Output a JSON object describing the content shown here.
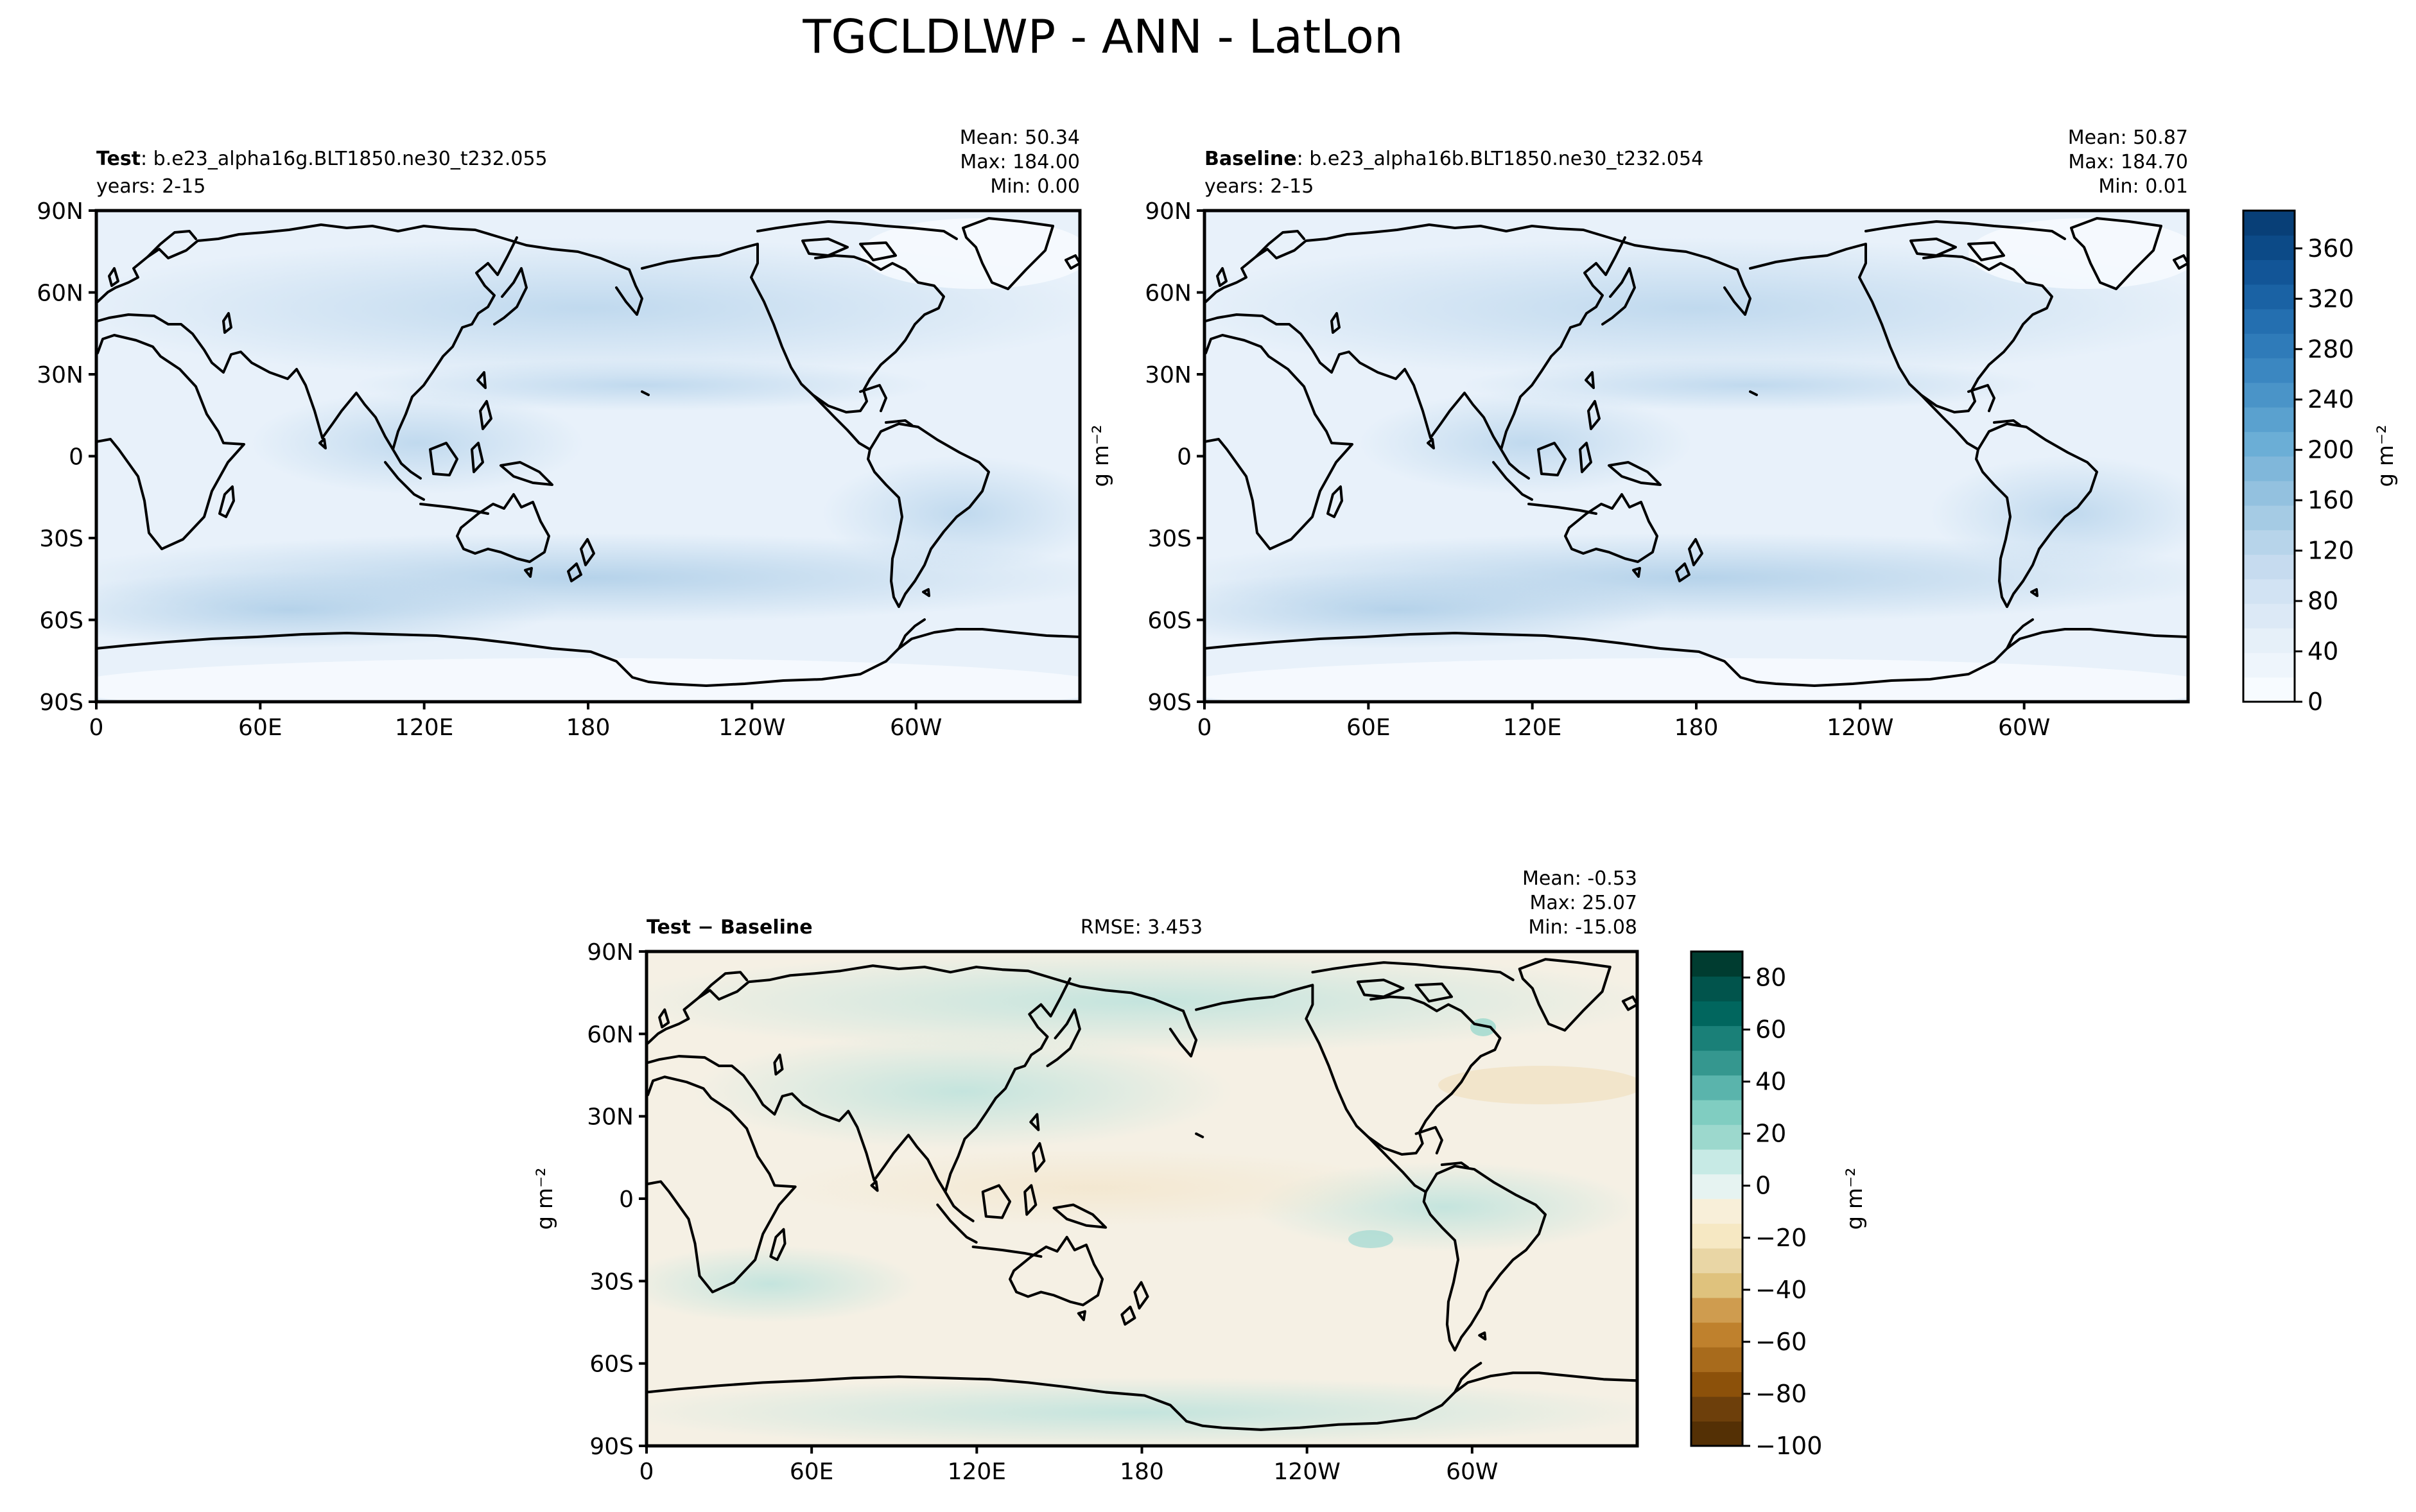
{
  "figure": {
    "title": "TGCLDLWP - ANN - LatLon"
  },
  "panels": [
    {
      "id": "test",
      "label_bold": "Test",
      "label_rest": ": b.e23_alpha16g.BLT1850.ne30_t232.055",
      "years": "years: 2-15",
      "stats": [
        "Mean: 50.34",
        "Max: 184.00",
        "Min:  0.00"
      ],
      "ylabel": "",
      "field": "blue"
    },
    {
      "id": "baseline",
      "label_bold": "Baseline",
      "label_rest": ": b.e23_alpha16b.BLT1850.ne30_t232.054",
      "years": "years: 2-15",
      "stats": [
        "Mean: 50.87",
        "Max: 184.70",
        "Min:  0.01"
      ],
      "ylabel": "g m⁻²",
      "field": "blue"
    },
    {
      "id": "diff",
      "label_bold": "Test − Baseline",
      "label_rest": "",
      "center_text": "RMSE: 3.453",
      "years": "",
      "stats": [
        "Mean: -0.53",
        "Max: 25.07",
        "Min: -15.08"
      ],
      "ylabel": "g m⁻²",
      "field": "diff"
    }
  ],
  "axes": {
    "lat_ticks": [
      "90N",
      "60N",
      "30N",
      "0",
      "30S",
      "60S",
      "90S"
    ],
    "lon_ticks": [
      "0",
      "60E",
      "120E",
      "180",
      "120W",
      "60W"
    ]
  },
  "colorbars": [
    {
      "id": "main",
      "label": "g m⁻²",
      "range": [
        0,
        390
      ],
      "ticks": [
        "0",
        "40",
        "80",
        "120",
        "160",
        "200",
        "240",
        "280",
        "320",
        "360"
      ],
      "colors": [
        "#f7fbff",
        "#eef5fc",
        "#e6f0f9",
        "#dce9f6",
        "#d2e3f3",
        "#c6dbef",
        "#b7d4ea",
        "#a5cbe4",
        "#93c1df",
        "#80b7da",
        "#6baed6",
        "#5aa1cf",
        "#4a94c8",
        "#3b87c1",
        "#2f7bb9",
        "#246fb0",
        "#1a62a4",
        "#125597",
        "#0c4a87",
        "#083f77"
      ]
    },
    {
      "id": "diff",
      "label": "g m⁻²",
      "range": [
        -100,
        90
      ],
      "ticks": [
        "−100",
        "−80",
        "−60",
        "−40",
        "−20",
        "0",
        "20",
        "40",
        "60",
        "80"
      ],
      "colors": [
        "#543005",
        "#6d3f0b",
        "#8c510a",
        "#a86b1c",
        "#bf812d",
        "#cf9c4f",
        "#dfc27d",
        "#e9d6a5",
        "#f6e8c3",
        "#f8efd9",
        "#e6f3f1",
        "#c7eae5",
        "#9cd8cd",
        "#80cdc1",
        "#5ab4ac",
        "#35978f",
        "#1a8078",
        "#01665e",
        "#01544c",
        "#003c30"
      ]
    }
  ]
}
